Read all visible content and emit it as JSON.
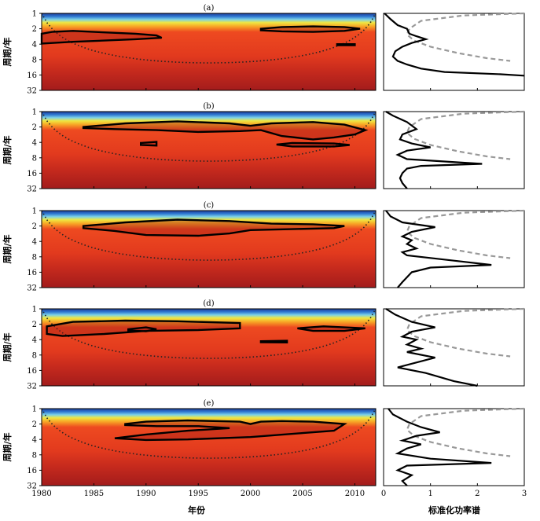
{
  "chart_data": {
    "type": "heatmap",
    "description_free": true,
    "xlabel": "年份",
    "ylabel": "周期/年",
    "side_xlabel": "标准化功率谱",
    "x_ticks": [
      1980,
      1985,
      1990,
      1995,
      2000,
      2005,
      2010
    ],
    "x_range": [
      1980,
      2012
    ],
    "y_ticks": [
      1,
      2,
      4,
      8,
      16,
      32
    ],
    "y_range": [
      1,
      32
    ],
    "side_x_ticks": [
      0,
      1,
      2,
      3
    ],
    "side_x_range": [
      0,
      3
    ],
    "panels": [
      {
        "label": "(a)",
        "contours": [
          [
            [
              1980,
              2.5
            ],
            [
              1981,
              2.3
            ],
            [
              1983,
              2.2
            ],
            [
              1986,
              2.35
            ],
            [
              1989,
              2.5
            ],
            [
              1991,
              2.7
            ],
            [
              1991.5,
              3.0
            ],
            [
              1989,
              3.2
            ],
            [
              1986,
              3.4
            ],
            [
              1983,
              3.6
            ],
            [
              1981,
              3.8
            ],
            [
              1980,
              3.9
            ]
          ],
          [
            [
              2001,
              2.0
            ],
            [
              2003,
              1.85
            ],
            [
              2006,
              1.8
            ],
            [
              2009,
              1.85
            ],
            [
              2010.5,
              2.0
            ],
            [
              2009,
              2.2
            ],
            [
              2006,
              2.3
            ],
            [
              2003,
              2.25
            ],
            [
              2001,
              2.15
            ]
          ],
          [
            [
              2008.3,
              4.0
            ],
            [
              2010,
              4.0
            ],
            [
              2010,
              4.2
            ],
            [
              2008.3,
              4.2
            ]
          ]
        ],
        "global_power": [
          [
            0.02,
            1
          ],
          [
            0.15,
            1.3
          ],
          [
            0.3,
            1.7
          ],
          [
            0.5,
            2.0
          ],
          [
            0.55,
            2.5
          ],
          [
            0.7,
            2.8
          ],
          [
            0.9,
            3.2
          ],
          [
            0.6,
            3.8
          ],
          [
            0.4,
            4.5
          ],
          [
            0.25,
            5.5
          ],
          [
            0.2,
            7
          ],
          [
            0.3,
            8.5
          ],
          [
            0.5,
            10
          ],
          [
            0.8,
            12
          ],
          [
            1.3,
            14
          ],
          [
            2.5,
            15.5
          ],
          [
            3,
            16.5
          ]
        ],
        "significance": [
          [
            3,
            1
          ],
          [
            1.7,
            1.1
          ],
          [
            0.8,
            1.4
          ],
          [
            0.55,
            2
          ],
          [
            0.5,
            2.6
          ],
          [
            0.65,
            3.4
          ],
          [
            1,
            4.5
          ],
          [
            1.6,
            6
          ],
          [
            2.2,
            7.5
          ],
          [
            2.7,
            8.5
          ]
        ]
      },
      {
        "label": "(b)",
        "contours": [
          [
            [
              1984,
              2.0
            ],
            [
              1988,
              1.7
            ],
            [
              1993,
              1.55
            ],
            [
              1998,
              1.7
            ],
            [
              2000,
              1.9
            ],
            [
              2002,
              1.7
            ],
            [
              2006,
              1.6
            ],
            [
              2009,
              1.8
            ],
            [
              2011,
              2.3
            ],
            [
              2010,
              2.8
            ],
            [
              2008,
              3.2
            ],
            [
              2006,
              3.5
            ],
            [
              2003,
              3.0
            ],
            [
              2001,
              2.3
            ],
            [
              1999,
              2.4
            ],
            [
              1995,
              2.5
            ],
            [
              1991,
              2.3
            ],
            [
              1987,
              2.2
            ],
            [
              1984,
              2.1
            ]
          ],
          [
            [
              1989.5,
              4.1
            ],
            [
              1991,
              3.9
            ],
            [
              1991,
              4.6
            ],
            [
              1989.5,
              4.5
            ]
          ],
          [
            [
              2002.5,
              4.4
            ],
            [
              2004,
              4.1
            ],
            [
              2008,
              4.2
            ],
            [
              2009.5,
              4.5
            ],
            [
              2008,
              4.8
            ],
            [
              2004,
              4.8
            ]
          ]
        ],
        "global_power": [
          [
            0.05,
            1
          ],
          [
            0.2,
            1.2
          ],
          [
            0.5,
            1.6
          ],
          [
            0.7,
            2.2
          ],
          [
            0.4,
            2.8
          ],
          [
            0.35,
            3.5
          ],
          [
            0.6,
            4.2
          ],
          [
            1.0,
            5.0
          ],
          [
            0.5,
            5.8
          ],
          [
            0.3,
            7
          ],
          [
            0.5,
            8.5
          ],
          [
            2.1,
            10.5
          ],
          [
            0.8,
            11.5
          ],
          [
            0.5,
            13
          ],
          [
            0.4,
            16
          ],
          [
            0.35,
            20
          ],
          [
            0.4,
            25
          ],
          [
            0.5,
            32
          ]
        ],
        "significance": [
          [
            3,
            1
          ],
          [
            1.7,
            1.1
          ],
          [
            0.8,
            1.4
          ],
          [
            0.55,
            2
          ],
          [
            0.5,
            2.6
          ],
          [
            0.65,
            3.4
          ],
          [
            1,
            4.5
          ],
          [
            1.6,
            6
          ],
          [
            2.2,
            7.5
          ],
          [
            2.7,
            8.5
          ]
        ]
      },
      {
        "label": "(c)",
        "contours": [
          [
            [
              1984,
              2.0
            ],
            [
              1988,
              1.7
            ],
            [
              1993,
              1.5
            ],
            [
              1998,
              1.6
            ],
            [
              2002,
              1.8
            ],
            [
              2006,
              1.85
            ],
            [
              2009,
              2.0
            ],
            [
              2008,
              2.2
            ],
            [
              2004,
              2.3
            ],
            [
              2000,
              2.4
            ],
            [
              1998,
              2.8
            ],
            [
              1995,
              3.1
            ],
            [
              1990,
              3.0
            ],
            [
              1987,
              2.5
            ],
            [
              1984,
              2.2
            ]
          ]
        ],
        "global_power": [
          [
            0.05,
            1
          ],
          [
            0.15,
            1.3
          ],
          [
            0.4,
            1.7
          ],
          [
            1.1,
            2.1
          ],
          [
            0.6,
            2.6
          ],
          [
            0.4,
            3.2
          ],
          [
            0.6,
            3.8
          ],
          [
            0.5,
            4.5
          ],
          [
            0.7,
            5.5
          ],
          [
            0.4,
            6.5
          ],
          [
            0.5,
            7.5
          ],
          [
            1.5,
            9.5
          ],
          [
            2.3,
            11.5
          ],
          [
            1.0,
            13
          ],
          [
            0.6,
            16
          ],
          [
            0.5,
            20
          ],
          [
            0.4,
            25
          ],
          [
            0.3,
            32
          ]
        ],
        "significance": [
          [
            3,
            1
          ],
          [
            1.7,
            1.1
          ],
          [
            0.8,
            1.4
          ],
          [
            0.55,
            2
          ],
          [
            0.5,
            2.6
          ],
          [
            0.65,
            3.4
          ],
          [
            1,
            4.5
          ],
          [
            1.6,
            6
          ],
          [
            2.2,
            7.5
          ],
          [
            2.7,
            8.5
          ]
        ]
      },
      {
        "label": "(d)",
        "contours": [
          [
            [
              1980.5,
              2.2
            ],
            [
              1983,
              1.8
            ],
            [
              1988,
              1.7
            ],
            [
              1993,
              1.75
            ],
            [
              1999,
              1.9
            ],
            [
              1999,
              2.4
            ],
            [
              1995,
              2.6
            ],
            [
              1990,
              2.7
            ],
            [
              1986,
              3.1
            ],
            [
              1982,
              3.4
            ],
            [
              1980.5,
              3.1
            ]
          ],
          [
            [
              1988.3,
              2.5
            ],
            [
              1990,
              2.3
            ],
            [
              1991,
              2.5
            ],
            [
              1990,
              2.75
            ],
            [
              1988.3,
              2.65
            ]
          ],
          [
            [
              2004.5,
              2.4
            ],
            [
              2007,
              2.2
            ],
            [
              2011,
              2.4
            ],
            [
              2009,
              2.7
            ],
            [
              2006,
              2.7
            ]
          ],
          [
            [
              2001,
              4.3
            ],
            [
              2003.5,
              4.2
            ],
            [
              2003.5,
              4.55
            ],
            [
              2001,
              4.5
            ]
          ]
        ],
        "global_power": [
          [
            0.05,
            1
          ],
          [
            0.25,
            1.3
          ],
          [
            0.6,
            1.8
          ],
          [
            1.1,
            2.3
          ],
          [
            0.6,
            2.8
          ],
          [
            0.4,
            3.5
          ],
          [
            0.7,
            4.0
          ],
          [
            0.5,
            5.0
          ],
          [
            0.8,
            6.0
          ],
          [
            0.5,
            7.0
          ],
          [
            1.1,
            9.0
          ],
          [
            0.3,
            14
          ],
          [
            0.9,
            18
          ],
          [
            1.5,
            26
          ],
          [
            2.0,
            32
          ]
        ],
        "significance": [
          [
            3,
            1
          ],
          [
            1.7,
            1.1
          ],
          [
            0.8,
            1.4
          ],
          [
            0.55,
            2
          ],
          [
            0.5,
            2.6
          ],
          [
            0.65,
            3.4
          ],
          [
            1,
            4.5
          ],
          [
            1.6,
            6
          ],
          [
            2.2,
            7.5
          ],
          [
            2.7,
            8.5
          ]
        ]
      },
      {
        "label": "(e)",
        "contours": [
          [
            [
              1988,
              2.0
            ],
            [
              1990,
              1.8
            ],
            [
              1994,
              1.7
            ],
            [
              1999,
              1.8
            ],
            [
              2000,
              2.0
            ],
            [
              2001,
              1.8
            ],
            [
              2003,
              1.75
            ],
            [
              2006,
              1.8
            ],
            [
              2009,
              2.0
            ],
            [
              2008,
              2.7
            ],
            [
              2005,
              3.0
            ],
            [
              2000,
              3.6
            ],
            [
              1994,
              4.0
            ],
            [
              1990,
              4.1
            ],
            [
              1987,
              3.8
            ],
            [
              1990,
              3.2
            ],
            [
              1994,
              2.7
            ],
            [
              1998,
              2.4
            ],
            [
              1995,
              2.2
            ],
            [
              1991,
              2.2
            ],
            [
              1988,
              2.1
            ]
          ]
        ],
        "global_power": [
          [
            0.1,
            1
          ],
          [
            0.2,
            1.3
          ],
          [
            0.5,
            1.8
          ],
          [
            0.8,
            2.3
          ],
          [
            1.2,
            2.9
          ],
          [
            0.7,
            3.4
          ],
          [
            0.4,
            4.2
          ],
          [
            0.8,
            5.0
          ],
          [
            0.5,
            6.0
          ],
          [
            0.3,
            7.5
          ],
          [
            1.0,
            9.5
          ],
          [
            2.3,
            11.5
          ],
          [
            0.5,
            13
          ],
          [
            0.3,
            16
          ],
          [
            0.6,
            20
          ],
          [
            0.4,
            26
          ],
          [
            0.5,
            32
          ]
        ],
        "significance": [
          [
            3,
            1
          ],
          [
            1.7,
            1.1
          ],
          [
            0.8,
            1.4
          ],
          [
            0.55,
            2
          ],
          [
            0.5,
            2.6
          ],
          [
            0.65,
            3.4
          ],
          [
            1,
            4.5
          ],
          [
            1.6,
            6
          ],
          [
            2.2,
            7.5
          ],
          [
            2.7,
            8.5
          ]
        ]
      }
    ]
  }
}
